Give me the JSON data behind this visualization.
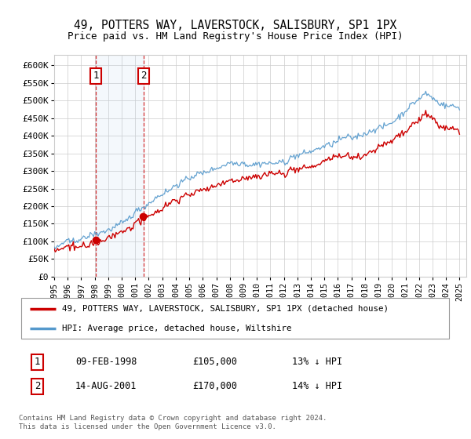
{
  "title": "49, POTTERS WAY, LAVERSTOCK, SALISBURY, SP1 1PX",
  "subtitle": "Price paid vs. HM Land Registry's House Price Index (HPI)",
  "ylabel_ticks": [
    "£0",
    "£50K",
    "£100K",
    "£150K",
    "£200K",
    "£250K",
    "£300K",
    "£350K",
    "£400K",
    "£450K",
    "£500K",
    "£550K",
    "£600K"
  ],
  "ytick_values": [
    0,
    50000,
    100000,
    150000,
    200000,
    250000,
    300000,
    350000,
    400000,
    450000,
    500000,
    550000,
    600000
  ],
  "ylim": [
    0,
    630000
  ],
  "hpi_color": "#5599cc",
  "price_color": "#cc0000",
  "sale1_date": 1998.1,
  "sale1_price": 105000,
  "sale1_label": "1",
  "sale2_date": 2001.62,
  "sale2_price": 170000,
  "sale2_label": "2",
  "legend_entry1": "49, POTTERS WAY, LAVERSTOCK, SALISBURY, SP1 1PX (detached house)",
  "legend_entry2": "HPI: Average price, detached house, Wiltshire",
  "table_row1": [
    "1",
    "09-FEB-1998",
    "£105,000",
    "13% ↓ HPI"
  ],
  "table_row2": [
    "2",
    "14-AUG-2001",
    "£170,000",
    "14% ↓ HPI"
  ],
  "footer": "Contains HM Land Registry data © Crown copyright and database right 2024.\nThis data is licensed under the Open Government Licence v3.0.",
  "background_color": "#ffffff",
  "grid_color": "#cccccc",
  "hpi_noise_scale": 4000,
  "price_noise_scale": 3000
}
